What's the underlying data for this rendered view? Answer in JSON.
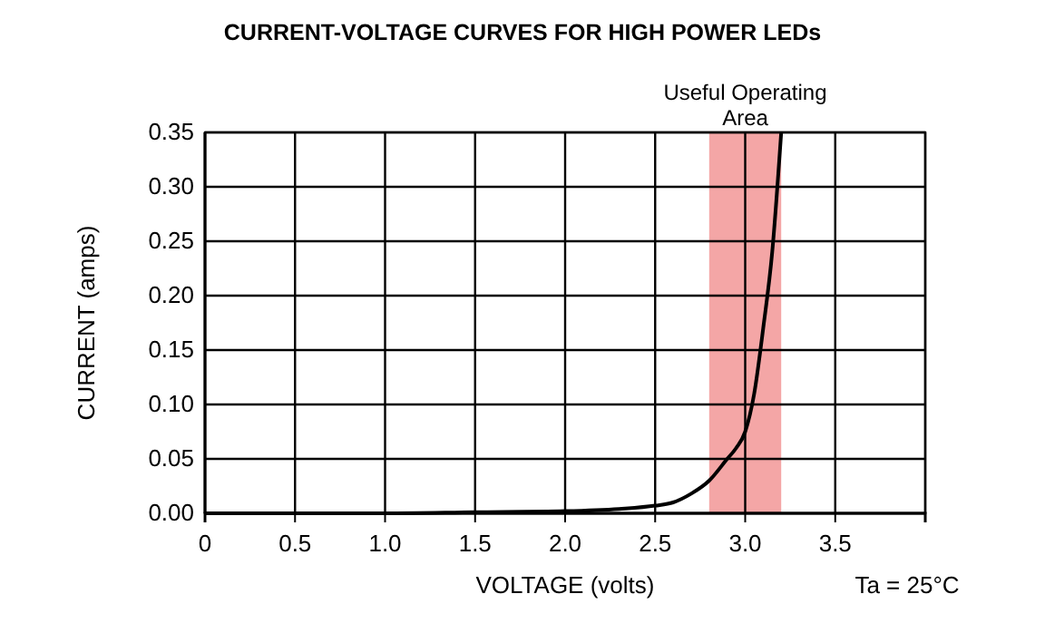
{
  "chart_data": {
    "type": "line",
    "title": "CURRENT-VOLTAGE CURVES FOR HIGH POWER LEDs",
    "xlabel": "VOLTAGE (volts)",
    "ylabel": "CURRENT (amps)",
    "x": [
      0,
      1.0,
      1.5,
      2.0,
      2.3,
      2.5,
      2.6,
      2.7,
      2.8,
      2.9,
      2.95,
      3.0,
      3.05,
      3.1,
      3.15,
      3.2
    ],
    "series": [
      {
        "color": "#000000",
        "values": [
          0,
          0,
          0.001,
          0.002,
          0.004,
          0.007,
          0.01,
          0.018,
          0.03,
          0.05,
          0.06,
          0.075,
          0.11,
          0.17,
          0.24,
          0.35
        ]
      }
    ],
    "xlim": [
      0,
      4
    ],
    "ylim": [
      0,
      0.35
    ],
    "xticks": [
      {
        "value": 0,
        "label": "0"
      },
      {
        "value": 0.5,
        "label": "0.5"
      },
      {
        "value": 1,
        "label": "1.0"
      },
      {
        "value": 1.5,
        "label": "1.5"
      },
      {
        "value": 2,
        "label": "2.0"
      },
      {
        "value": 2.5,
        "label": "2.5"
      },
      {
        "value": 3,
        "label": "3.0"
      },
      {
        "value": 3.5,
        "label": "3.5"
      },
      {
        "value": 4,
        "label": null
      }
    ],
    "yticks": [
      {
        "value": 0,
        "label": "0.00"
      },
      {
        "value": 0.05,
        "label": "0.05"
      },
      {
        "value": 0.1,
        "label": "0.10"
      },
      {
        "value": 0.15,
        "label": "0.15"
      },
      {
        "value": 0.2,
        "label": "0.20"
      },
      {
        "value": 0.25,
        "label": "0.25"
      },
      {
        "value": 0.3,
        "label": "0.30"
      },
      {
        "value": 0.35,
        "label": "0.35"
      }
    ],
    "grid": true,
    "bands": [
      {
        "axis": "x",
        "from": 2.8,
        "to": 3.2,
        "label": "Useful Operating\nArea",
        "color": "#f4a6a6"
      }
    ],
    "annotations": [
      "Ta = 25°C"
    ]
  }
}
